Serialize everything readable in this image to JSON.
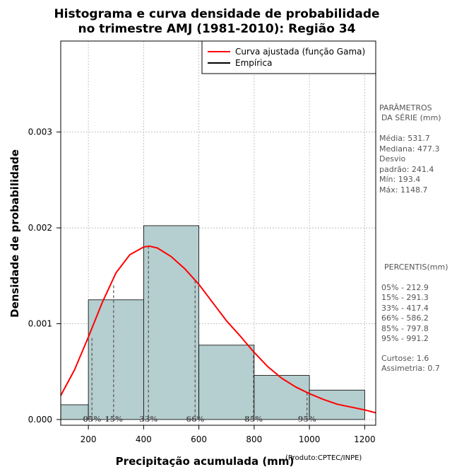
{
  "chart_data": {
    "type": "bar",
    "title_line1": "Histograma e curva densidade de probabilidade",
    "title_line2": "no trimestre AMJ (1981-2010): Região 34",
    "xlabel": "Precipitação acumulada (mm)",
    "ylabel": "Densidade de probabilidade",
    "credit": "(Produto:CPTEC/INPE)",
    "xlim": [
      100,
      1240
    ],
    "ylim": [
      -6e-05,
      0.00395
    ],
    "x_ticks": [
      200,
      400,
      600,
      800,
      1000,
      1200
    ],
    "y_ticks": [
      0.0,
      0.001,
      0.002,
      0.003
    ],
    "y_tick_labels": [
      "0.000",
      "0.001",
      "0.002",
      "0.003"
    ],
    "grid": true,
    "bins": [
      {
        "from": 100,
        "to": 200,
        "density": 0.000154
      },
      {
        "from": 200,
        "to": 400,
        "density": 0.001249
      },
      {
        "from": 400,
        "to": 600,
        "density": 0.002023
      },
      {
        "from": 600,
        "to": 800,
        "density": 0.000776
      },
      {
        "from": 800,
        "to": 1000,
        "density": 0.00046
      },
      {
        "from": 1000,
        "to": 1200,
        "density": 0.000307
      }
    ],
    "bar_color": "#b5cecf",
    "curve_color": "#ff0000",
    "fitted_curve": {
      "name": "Curva ajustada (função Gama)",
      "x": [
        100,
        150,
        200,
        250,
        300,
        350,
        400,
        420,
        450,
        500,
        550,
        600,
        650,
        700,
        750,
        800,
        850,
        900,
        950,
        1000,
        1050,
        1100,
        1150,
        1200,
        1240
      ],
      "y": [
        0.00025,
        0.00052,
        0.00086,
        0.00122,
        0.00153,
        0.00172,
        0.0018,
        0.00181,
        0.00179,
        0.0017,
        0.00157,
        0.00141,
        0.00122,
        0.00103,
        0.00087,
        0.0007,
        0.00055,
        0.00043,
        0.00034,
        0.00027,
        0.00021,
        0.00016,
        0.00013,
        0.0001,
        7e-05
      ]
    },
    "empirical": {
      "name": "Empírica"
    },
    "percentile_lines": [
      {
        "label": "05%",
        "x": 212.9,
        "y": 0.00085
      },
      {
        "label": "15%",
        "x": 291.3,
        "y": 0.0014
      },
      {
        "label": "33%",
        "x": 417.4,
        "y": 0.00181
      },
      {
        "label": "66%",
        "x": 586.2,
        "y": 0.00145
      },
      {
        "label": "85%",
        "x": 797.8,
        "y": 0.00072
      },
      {
        "label": "95%",
        "x": 991.2,
        "y": 0.00028
      }
    ],
    "legend_position": "top-right"
  },
  "side_panel": {
    "params_title_1": "PARÂMETROS",
    "params_title_2": "DA SÉRIE (mm)",
    "params": [
      "Média:  531.7",
      "Mediana:  477.3",
      "Desvio",
      "padrão:  241.4",
      "Mín:  193.4",
      "Máx:  1148.7"
    ],
    "percentis_title": "PERCENTIS(mm)",
    "percentis": [
      "05% -   212.9",
      "15% -   291.3",
      "33% -   417.4",
      "66% -   586.2",
      "85% -   797.8",
      "95% -   991.2"
    ],
    "stats": [
      "Curtose:  1.6",
      "Assimetria:  0.7"
    ]
  }
}
